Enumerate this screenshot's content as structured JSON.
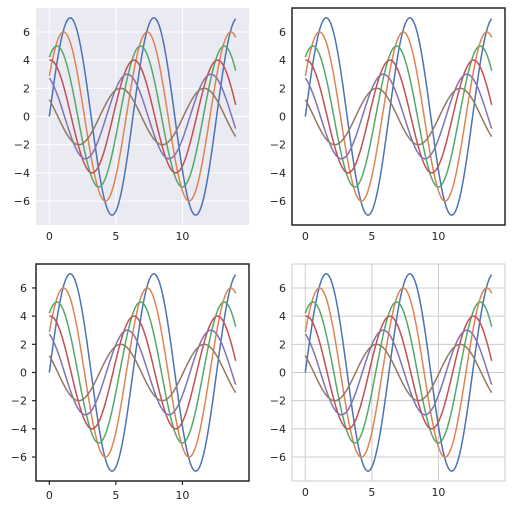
{
  "chart_data": {
    "type": "line",
    "x_range": [
      0,
      14
    ],
    "equation": "y = sin(x + 0.5*i) * (7 - i) for series i = 0..5",
    "line_colors": [
      "#4c72b0",
      "#dd8452",
      "#55a868",
      "#c44e52",
      "#8172b3",
      "#937860"
    ],
    "subplots": [
      {
        "style": "darkgrid",
        "background": "#eaeaf2",
        "grid": true,
        "grid_color": "#ffffff",
        "frame": false,
        "ticks": false,
        "xlim": [
          -1,
          15
        ],
        "ylim": [
          -7.7,
          7.7
        ],
        "x_ticks": [
          0,
          5,
          10
        ],
        "y_ticks": [
          -6,
          -4,
          -2,
          0,
          2,
          4,
          6
        ],
        "x_tick_labels": [
          "0",
          "5",
          "10"
        ],
        "y_tick_labels": [
          "−6",
          "−4",
          "−2",
          "0",
          "2",
          "4",
          "6"
        ]
      },
      {
        "style": "white",
        "background": "#ffffff",
        "grid": false,
        "frame": true,
        "frame_color": "#262626",
        "ticks": false,
        "xlim": [
          -1,
          15
        ],
        "ylim": [
          -7.7,
          7.7
        ],
        "x_ticks": [
          0,
          5,
          10
        ],
        "y_ticks": [
          -6,
          -4,
          -2,
          0,
          2,
          4,
          6
        ],
        "x_tick_labels": [
          "0",
          "5",
          "10"
        ],
        "y_tick_labels": [
          "−6",
          "−4",
          "−2",
          "0",
          "2",
          "4",
          "6"
        ]
      },
      {
        "style": "ticks",
        "background": "#ffffff",
        "grid": false,
        "frame": true,
        "frame_color": "#262626",
        "ticks": true,
        "xlim": [
          -1,
          15
        ],
        "ylim": [
          -7.7,
          7.7
        ],
        "x_ticks": [
          0,
          5,
          10
        ],
        "y_ticks": [
          -6,
          -4,
          -2,
          0,
          2,
          4,
          6
        ],
        "x_tick_labels": [
          "0",
          "5",
          "10"
        ],
        "y_tick_labels": [
          "−6",
          "−4",
          "−2",
          "0",
          "2",
          "4",
          "6"
        ]
      },
      {
        "style": "whitegrid",
        "background": "#ffffff",
        "grid": true,
        "grid_color": "#cccccc",
        "frame": true,
        "frame_color": "#cccccc",
        "ticks": false,
        "xlim": [
          -1,
          15
        ],
        "ylim": [
          -7.7,
          7.7
        ],
        "x_ticks": [
          0,
          5,
          10
        ],
        "y_ticks": [
          -6,
          -4,
          -2,
          0,
          2,
          4,
          6
        ],
        "x_tick_labels": [
          "0",
          "5",
          "10"
        ],
        "y_tick_labels": [
          "−6",
          "−4",
          "−2",
          "0",
          "2",
          "4",
          "6"
        ]
      }
    ]
  }
}
